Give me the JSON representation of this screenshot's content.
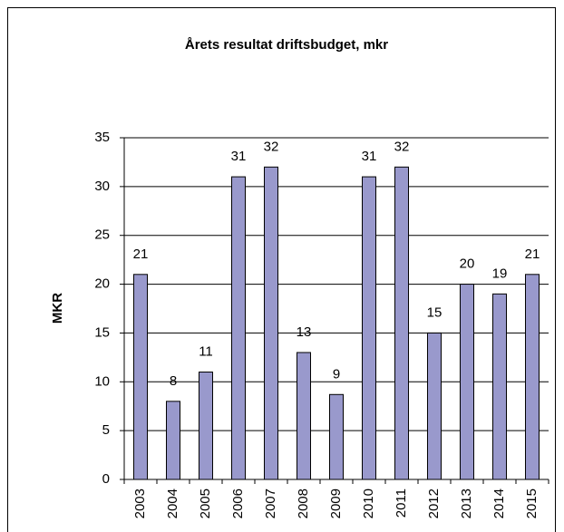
{
  "chart_data": {
    "type": "bar",
    "title": "Årets resultat driftsbudget, mkr",
    "y_label": "MKR",
    "categories": [
      "2003",
      "2004",
      "2005",
      "2006",
      "2007",
      "2008",
      "2009",
      "2010",
      "2011",
      "2012",
      "2013",
      "2014",
      "2015"
    ],
    "values": [
      21,
      8,
      11,
      31,
      32,
      13,
      8.7,
      31,
      32,
      15,
      20,
      19,
      21
    ],
    "value_labels": [
      "21",
      "8",
      "11",
      "31",
      "32",
      "13",
      "9",
      "31",
      "32",
      "15",
      "20",
      "19",
      "21"
    ],
    "color": "#9999cc",
    "ylim": [
      0,
      35
    ],
    "yticks": [
      0,
      5,
      10,
      15,
      20,
      25,
      30,
      35
    ],
    "grid": true
  }
}
